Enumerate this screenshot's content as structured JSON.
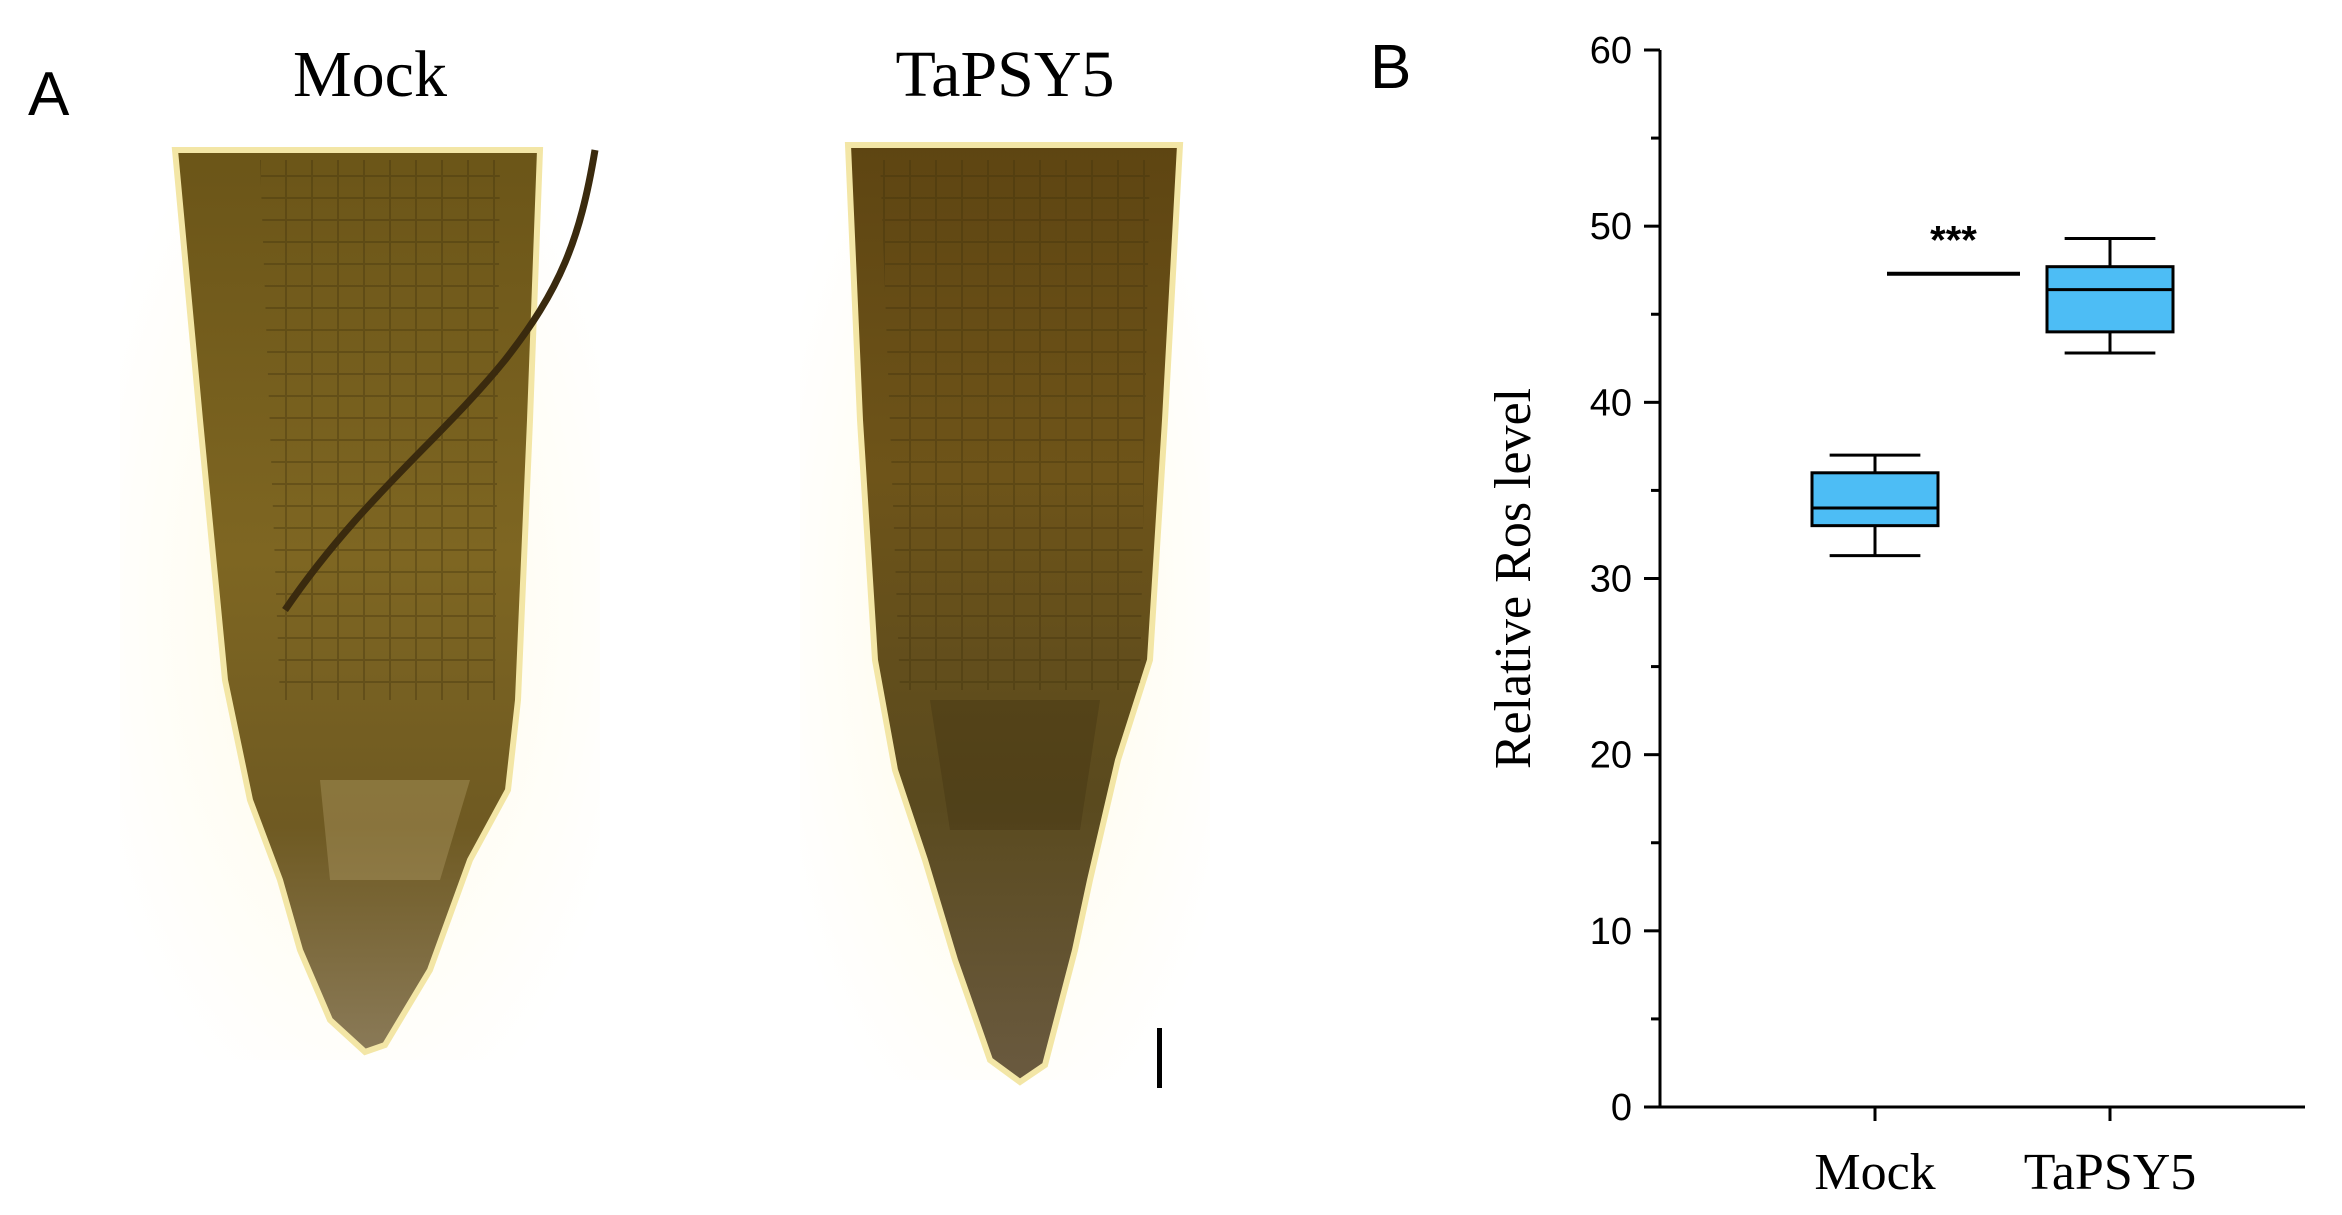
{
  "panel_a": {
    "letter": "A",
    "labels": [
      "Mock",
      "TaPSY5"
    ]
  },
  "panel_b": {
    "letter": "B"
  },
  "colors": {
    "box_fill": "#4dbdf5",
    "root_dark": "#5a4a18",
    "root_mid": "#7a6220",
    "root_light": "#a08a3a",
    "background_glow": "#fffbe8"
  },
  "chart_data": {
    "type": "box",
    "categories": [
      "Mock",
      "TaPSY5"
    ],
    "ylabel": "Relative Ros level",
    "xlabel": "",
    "ylim": [
      0,
      60
    ],
    "yticks": [
      0,
      10,
      20,
      30,
      40,
      50,
      60
    ],
    "grid": false,
    "series": [
      {
        "boxes": [
          {
            "category": "Mock",
            "whisker_low": 31.3,
            "q1": 33.0,
            "median": 34.0,
            "q3": 36.0,
            "whisker_high": 37.0
          },
          {
            "category": "TaPSY5",
            "whisker_low": 42.8,
            "q1": 44.0,
            "median": 46.4,
            "q3": 47.7,
            "whisker_high": 49.3
          }
        ]
      }
    ],
    "annotations": [
      {
        "text": "***",
        "y": 47.3,
        "between": [
          "Mock",
          "TaPSY5"
        ]
      }
    ]
  }
}
